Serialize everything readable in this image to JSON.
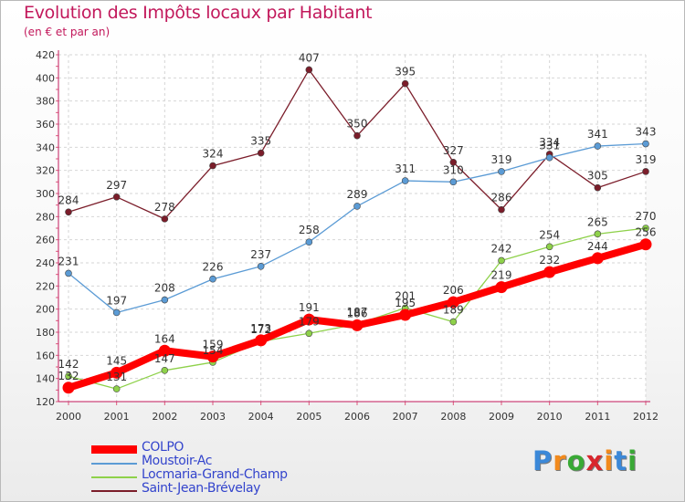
{
  "chart_data": {
    "type": "line",
    "title": "Evolution des Impôts locaux par Habitant",
    "subtitle": "(en € et par an)",
    "xlabel": "",
    "ylabel": "",
    "ylim": [
      120,
      420
    ],
    "yticks": [
      120,
      140,
      160,
      180,
      200,
      220,
      240,
      260,
      280,
      300,
      320,
      340,
      360,
      380,
      400,
      420
    ],
    "x": [
      "2000",
      "2001",
      "2002",
      "2003",
      "2004",
      "2005",
      "2006",
      "2007",
      "2008",
      "2009",
      "2010",
      "2011",
      "2012"
    ],
    "series": [
      {
        "name": "Saint-Jean-Brévelay",
        "color": "#7b1d2a",
        "values": [
          284,
          297,
          278,
          324,
          335,
          407,
          350,
          395,
          327,
          286,
          334,
          305,
          319
        ]
      },
      {
        "name": "Moustoir-Ac",
        "color": "#5b9bd5",
        "values": [
          231,
          197,
          208,
          226,
          237,
          258,
          289,
          311,
          310,
          319,
          331,
          341,
          343
        ]
      },
      {
        "name": "Locmaria-Grand-Champ",
        "color": "#8ed14a",
        "values": [
          142,
          131,
          147,
          154,
          172,
          179,
          187,
          201,
          189,
          242,
          254,
          265,
          270
        ]
      },
      {
        "name": "COLPO",
        "color": "#ff0000",
        "values": [
          132,
          145,
          164,
          159,
          173,
          191,
          186,
          195,
          206,
          219,
          232,
          244,
          256
        ]
      }
    ],
    "legend": [
      "COLPO",
      "Moustoir-Ac",
      "Locmaria-Grand-Champ",
      "Saint-Jean-Brévelay"
    ],
    "legend_position": "bottom-left",
    "grid": true
  },
  "brand": {
    "logo_text": "Proxiti"
  }
}
